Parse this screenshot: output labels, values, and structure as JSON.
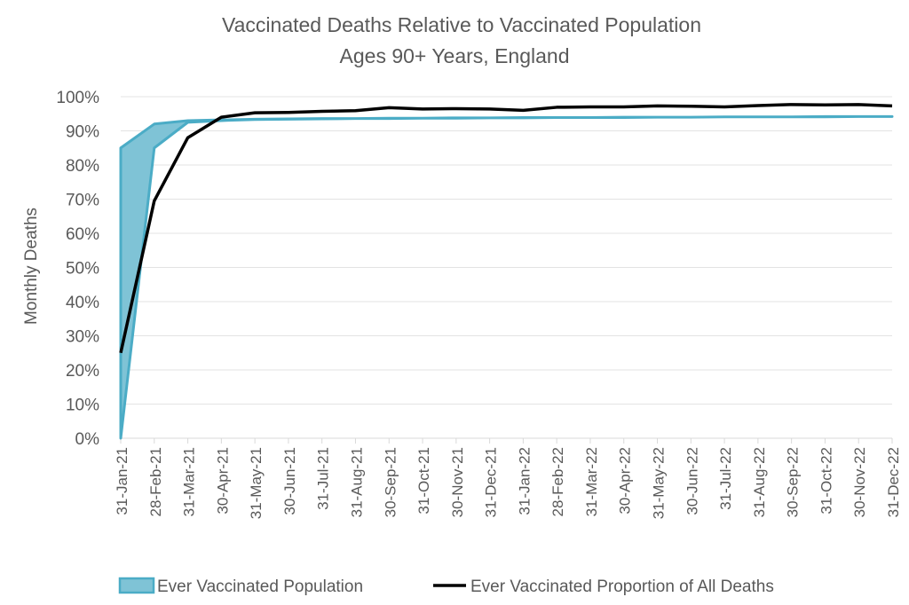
{
  "chart_data": {
    "type": "line",
    "title": "Vaccinated Deaths Relative to Vaccinated Population",
    "subtitle": "Ages 90+ Years, England",
    "xlabel": "",
    "ylabel": "Monthly Deaths",
    "ylim": [
      0,
      100
    ],
    "yticks": [
      "0%",
      "10%",
      "20%",
      "30%",
      "40%",
      "50%",
      "60%",
      "70%",
      "80%",
      "90%",
      "100%"
    ],
    "grid": true,
    "legend_position": "bottom",
    "categories": [
      "31-Jan-21",
      "28-Feb-21",
      "31-Mar-21",
      "30-Apr-21",
      "31-May-21",
      "30-Jun-21",
      "31-Jul-21",
      "31-Aug-21",
      "30-Sep-21",
      "31-Oct-21",
      "30-Nov-21",
      "31-Dec-21",
      "31-Jan-22",
      "28-Feb-22",
      "31-Mar-22",
      "30-Apr-22",
      "31-May-22",
      "30-Jun-22",
      "31-Jul-22",
      "31-Aug-22",
      "30-Sep-22",
      "31-Oct-22",
      "30-Nov-22",
      "31-Dec-22"
    ],
    "series": [
      {
        "name": "Ever Vaccinated Population",
        "type": "band",
        "color": "#4bacc6",
        "fill": "#7fc3d6",
        "upper": [
          85,
          92,
          93,
          93.2,
          93.4,
          93.5,
          93.6,
          93.6,
          93.7,
          93.7,
          93.8,
          93.8,
          93.9,
          93.9,
          93.9,
          94.0,
          94.0,
          94.0,
          94.1,
          94.1,
          94.1,
          94.2,
          94.2,
          94.2
        ],
        "lower": [
          0,
          85,
          92.5,
          93,
          93.3,
          93.4,
          93.5,
          93.6,
          93.6,
          93.7,
          93.7,
          93.8,
          93.8,
          93.9,
          93.9,
          93.9,
          94.0,
          94.0,
          94.1,
          94.1,
          94.1,
          94.1,
          94.2,
          94.2
        ]
      },
      {
        "name": "Ever Vaccinated Proportion of All Deaths",
        "type": "line",
        "color": "#000000",
        "values": [
          25,
          69.5,
          88,
          94,
          95.3,
          95.4,
          95.7,
          95.9,
          96.8,
          96.4,
          96.5,
          96.4,
          96.0,
          96.9,
          97.0,
          97.0,
          97.3,
          97.2,
          97.0,
          97.4,
          97.7,
          97.6,
          97.7,
          97.3
        ]
      }
    ]
  }
}
